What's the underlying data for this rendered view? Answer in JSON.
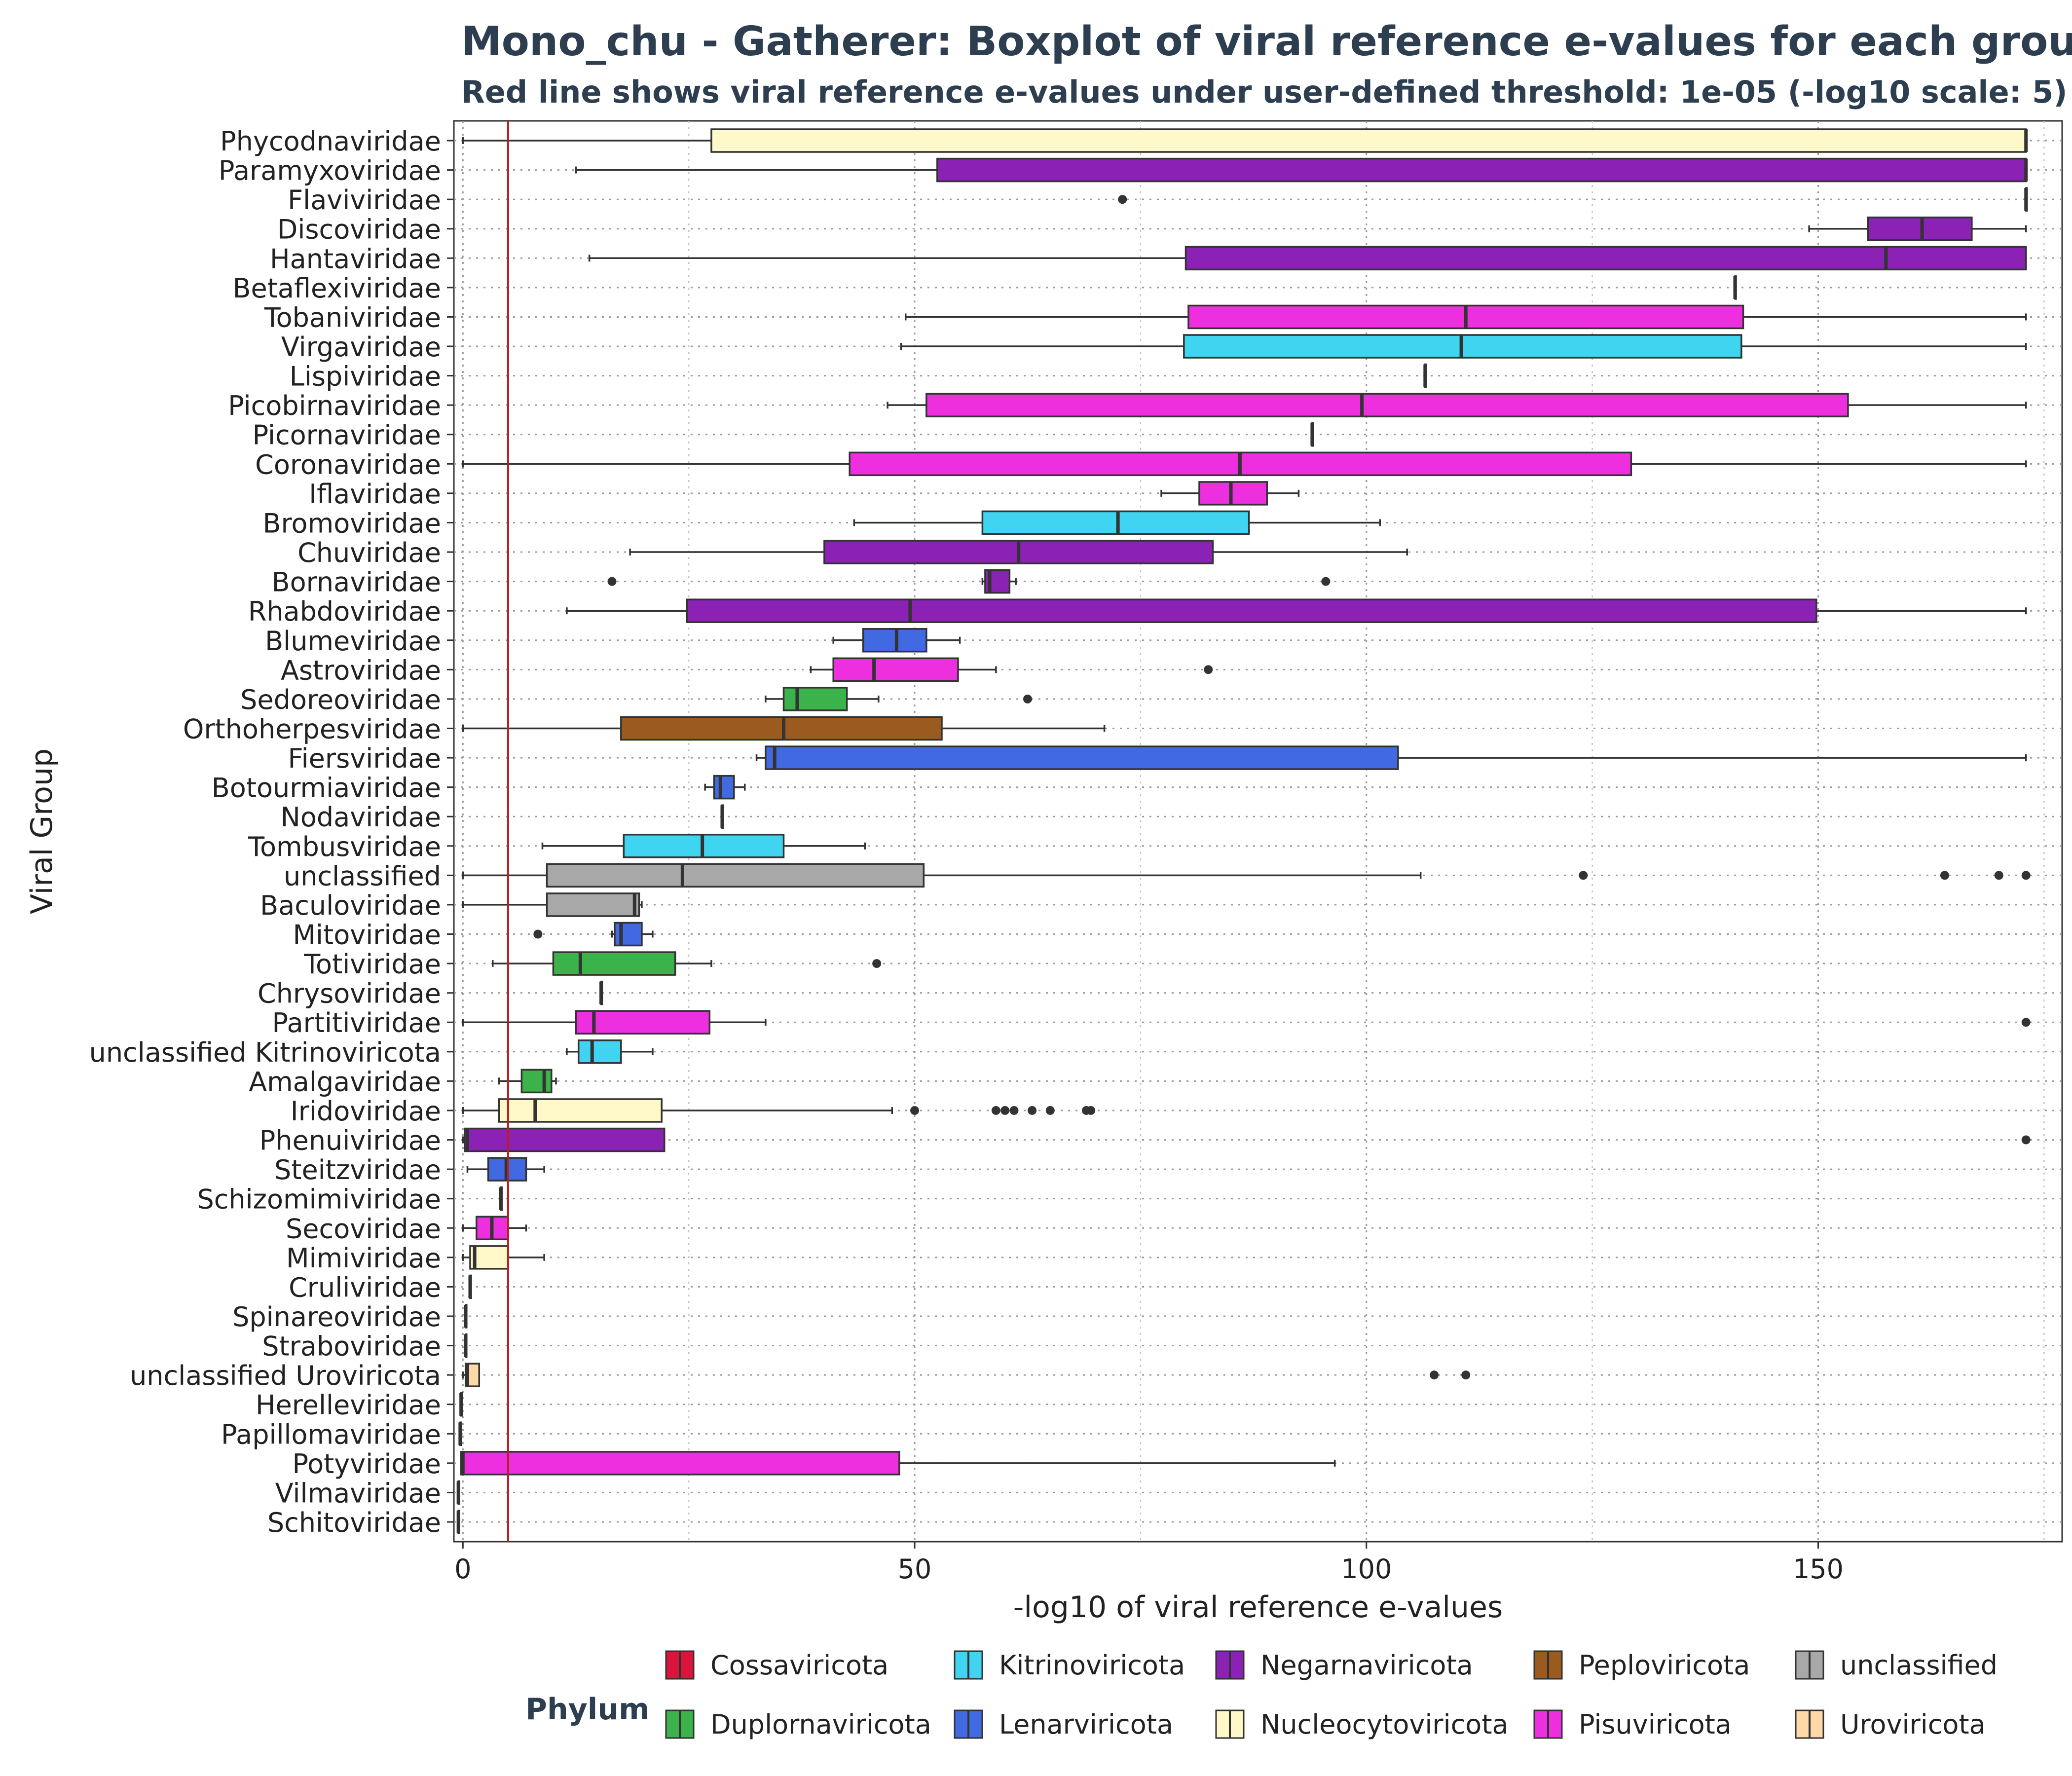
{
  "chart_data": {
    "type": "boxplot",
    "orientation": "horizontal",
    "title": "Mono_chu - Gatherer: Boxplot of viral reference e-values for each group",
    "subtitle": "Red line shows viral reference e-values under user-defined threshold: 1e-05 (-log10 scale: 5)",
    "xlabel": "-log10 of viral reference e-values",
    "ylabel": "Viral Group",
    "xlim": [
      -1,
      177
    ],
    "x_ticks": [
      0,
      50,
      100,
      150
    ],
    "threshold": 5,
    "threshold_color": "#b22222",
    "grid": "dotted",
    "legend": {
      "title": "Phylum",
      "position": "bottom",
      "entries": [
        {
          "name": "Cossaviricota",
          "color": "#dc143c"
        },
        {
          "name": "Duplornaviricota",
          "color": "#3cb34a"
        },
        {
          "name": "Kitrinoviricota",
          "color": "#3fd4f0"
        },
        {
          "name": "Lenarviricota",
          "color": "#4169e1"
        },
        {
          "name": "Negarnaviricota",
          "color": "#8b22b5"
        },
        {
          "name": "Nucleocytoviricota",
          "color": "#fff8c8"
        },
        {
          "name": "Peploviricota",
          "color": "#9c5b1e"
        },
        {
          "name": "Pisuviricota",
          "color": "#ee2fe0"
        },
        {
          "name": "unclassified",
          "color": "#a8a8a8"
        },
        {
          "name": "Uroviricota",
          "color": "#ffd8a8"
        }
      ]
    },
    "groups": [
      {
        "name": "Phycodnaviridae",
        "phylum": "Nucleocytoviricota",
        "min": 0,
        "q1": 27.5,
        "median": 173,
        "q3": 173,
        "max": 173,
        "outliers": []
      },
      {
        "name": "Paramyxoviridae",
        "phylum": "Negarnaviricota",
        "min": 12.5,
        "q1": 52.5,
        "median": 173,
        "q3": 173,
        "max": 173,
        "outliers": []
      },
      {
        "name": "Flaviviridae",
        "phylum": "Negarnaviricota",
        "min": 173,
        "q1": 173,
        "median": 173,
        "q3": 173,
        "max": 173,
        "outliers": [
          73
        ]
      },
      {
        "name": "Discoviridae",
        "phylum": "Negarnaviricota",
        "min": 149,
        "q1": 155.5,
        "median": 161.5,
        "q3": 167,
        "max": 173,
        "outliers": []
      },
      {
        "name": "Hantaviridae",
        "phylum": "Negarnaviricota",
        "min": 14,
        "q1": 80,
        "median": 157.5,
        "q3": 173,
        "max": 173,
        "outliers": []
      },
      {
        "name": "Betaflexiviridae",
        "phylum": "Kitrinoviricota",
        "min": 140.8,
        "q1": 140.8,
        "median": 140.8,
        "q3": 140.8,
        "max": 140.8,
        "outliers": []
      },
      {
        "name": "Tobaniviridae",
        "phylum": "Pisuviricota",
        "min": 49,
        "q1": 80.3,
        "median": 111,
        "q3": 141.7,
        "max": 173,
        "outliers": []
      },
      {
        "name": "Virgaviridae",
        "phylum": "Kitrinoviricota",
        "min": 48.5,
        "q1": 79.8,
        "median": 110.5,
        "q3": 141.5,
        "max": 173,
        "outliers": []
      },
      {
        "name": "Lispiviridae",
        "phylum": "Negarnaviricota",
        "min": 106.5,
        "q1": 106.5,
        "median": 106.5,
        "q3": 106.5,
        "max": 106.5,
        "outliers": []
      },
      {
        "name": "Picobirnaviridae",
        "phylum": "Pisuviricota",
        "min": 47,
        "q1": 51.3,
        "median": 99.5,
        "q3": 153.3,
        "max": 173,
        "outliers": []
      },
      {
        "name": "Picornaviridae",
        "phylum": "Pisuviricota",
        "min": 94,
        "q1": 94,
        "median": 94,
        "q3": 94,
        "max": 94,
        "outliers": []
      },
      {
        "name": "Coronaviridae",
        "phylum": "Pisuviricota",
        "min": 0,
        "q1": 42.8,
        "median": 86,
        "q3": 129.3,
        "max": 173,
        "outliers": []
      },
      {
        "name": "Iflaviridae",
        "phylum": "Pisuviricota",
        "min": 77.3,
        "q1": 81.5,
        "median": 85,
        "q3": 89,
        "max": 92.5,
        "outliers": []
      },
      {
        "name": "Bromoviridae",
        "phylum": "Kitrinoviricota",
        "min": 43.3,
        "q1": 57.5,
        "median": 72.5,
        "q3": 87,
        "max": 101.5,
        "outliers": []
      },
      {
        "name": "Chuviridae",
        "phylum": "Negarnaviricota",
        "min": 18.5,
        "q1": 40,
        "median": 61.5,
        "q3": 83,
        "max": 104.5,
        "outliers": []
      },
      {
        "name": "Bornaviridae",
        "phylum": "Negarnaviricota",
        "min": 57.5,
        "q1": 57.8,
        "median": 58.3,
        "q3": 60.5,
        "max": 61.2,
        "outliers": [
          16.5,
          95.5
        ]
      },
      {
        "name": "Rhabdoviridae",
        "phylum": "Negarnaviricota",
        "min": 11.5,
        "q1": 24.8,
        "median": 49.5,
        "q3": 149.8,
        "max": 173,
        "outliers": []
      },
      {
        "name": "Blumeviridae",
        "phylum": "Lenarviricota",
        "min": 41,
        "q1": 44.3,
        "median": 48,
        "q3": 51.3,
        "max": 55,
        "outliers": []
      },
      {
        "name": "Astroviridae",
        "phylum": "Pisuviricota",
        "min": 38.5,
        "q1": 41,
        "median": 45.5,
        "q3": 54.8,
        "max": 59,
        "outliers": [
          82.5
        ]
      },
      {
        "name": "Sedoreoviridae",
        "phylum": "Duplornaviricota",
        "min": 33.5,
        "q1": 35.5,
        "median": 37,
        "q3": 42.5,
        "max": 46,
        "outliers": [
          62.5
        ]
      },
      {
        "name": "Orthoherpesviridae",
        "phylum": "Peploviricota",
        "min": 0,
        "q1": 17.5,
        "median": 35.5,
        "q3": 53,
        "max": 71,
        "outliers": []
      },
      {
        "name": "Fiersviridae",
        "phylum": "Lenarviricota",
        "min": 32.5,
        "q1": 33.5,
        "median": 34.5,
        "q3": 103.5,
        "max": 173,
        "outliers": []
      },
      {
        "name": "Botourmiaviridae",
        "phylum": "Lenarviricota",
        "min": 26.8,
        "q1": 27.8,
        "median": 28.5,
        "q3": 30,
        "max": 31.2,
        "outliers": []
      },
      {
        "name": "Nodaviridae",
        "phylum": "Pisuviricota",
        "min": 28.7,
        "q1": 28.7,
        "median": 28.7,
        "q3": 28.7,
        "max": 28.7,
        "outliers": []
      },
      {
        "name": "Tombusviridae",
        "phylum": "Kitrinoviricota",
        "min": 8.8,
        "q1": 17.8,
        "median": 26.5,
        "q3": 35.5,
        "max": 44.5,
        "outliers": []
      },
      {
        "name": "unclassified",
        "phylum": "unclassified",
        "min": 0,
        "q1": 9.3,
        "median": 24.3,
        "q3": 51,
        "max": 106,
        "outliers": [
          124,
          164,
          170,
          173
        ]
      },
      {
        "name": "Baculoviridae",
        "phylum": "unclassified",
        "min": 0,
        "q1": 9.3,
        "median": 19,
        "q3": 19.5,
        "max": 19.8,
        "outliers": []
      },
      {
        "name": "Mitoviridae",
        "phylum": "Lenarviricota",
        "min": 16.5,
        "q1": 16.8,
        "median": 17.5,
        "q3": 19.8,
        "max": 21,
        "outliers": [
          8.3
        ]
      },
      {
        "name": "Totiviridae",
        "phylum": "Duplornaviricota",
        "min": 3.3,
        "q1": 10,
        "median": 13,
        "q3": 23.5,
        "max": 27.5,
        "outliers": [
          45.8
        ]
      },
      {
        "name": "Chrysoviridae",
        "phylum": "Duplornaviricota",
        "min": 15.3,
        "q1": 15.3,
        "median": 15.3,
        "q3": 15.3,
        "max": 15.3,
        "outliers": []
      },
      {
        "name": "Partitiviridae",
        "phylum": "Pisuviricota",
        "min": 0,
        "q1": 12.5,
        "median": 14.5,
        "q3": 27.3,
        "max": 33.5,
        "outliers": [
          173
        ]
      },
      {
        "name": "unclassified Kitrinoviricota",
        "phylum": "Kitrinoviricota",
        "min": 11.5,
        "q1": 12.8,
        "median": 14.3,
        "q3": 17.5,
        "max": 21,
        "outliers": []
      },
      {
        "name": "Amalgaviridae",
        "phylum": "Duplornaviricota",
        "min": 4,
        "q1": 6.5,
        "median": 9,
        "q3": 9.8,
        "max": 10.3,
        "outliers": []
      },
      {
        "name": "Iridoviridae",
        "phylum": "Nucleocytoviricota",
        "min": 0,
        "q1": 4,
        "median": 8,
        "q3": 22,
        "max": 47.5,
        "outliers": [
          50,
          59,
          60,
          61,
          63,
          65,
          69,
          69.5
        ]
      },
      {
        "name": "Phenuiviridae",
        "phylum": "Negarnaviricota",
        "min": 0,
        "q1": 0.2,
        "median": 0.5,
        "q3": 22.3,
        "max": 22.3,
        "outliers": [
          173
        ]
      },
      {
        "name": "Steitzviridae",
        "phylum": "Lenarviricota",
        "min": 0.5,
        "q1": 2.8,
        "median": 4.8,
        "q3": 7,
        "max": 9,
        "outliers": []
      },
      {
        "name": "Schizomimiviridae",
        "phylum": "Nucleocytoviricota",
        "min": 4.2,
        "q1": 4.2,
        "median": 4.2,
        "q3": 4.2,
        "max": 4.2,
        "outliers": []
      },
      {
        "name": "Secoviridae",
        "phylum": "Pisuviricota",
        "min": 0,
        "q1": 1.5,
        "median": 3.2,
        "q3": 5,
        "max": 7,
        "outliers": []
      },
      {
        "name": "Mimiviridae",
        "phylum": "Nucleocytoviricota",
        "min": 0,
        "q1": 0.8,
        "median": 1.3,
        "q3": 5,
        "max": 9,
        "outliers": []
      },
      {
        "name": "Cruliviridae",
        "phylum": "Negarnaviricota",
        "min": 0.8,
        "q1": 0.8,
        "median": 0.8,
        "q3": 0.8,
        "max": 0.8,
        "outliers": []
      },
      {
        "name": "Spinareoviridae",
        "phylum": "Duplornaviricota",
        "min": 0.3,
        "q1": 0.3,
        "median": 0.3,
        "q3": 0.3,
        "max": 0.3,
        "outliers": []
      },
      {
        "name": "Straboviridae",
        "phylum": "Uroviricota",
        "min": 0.3,
        "q1": 0.3,
        "median": 0.3,
        "q3": 0.3,
        "max": 0.3,
        "outliers": []
      },
      {
        "name": "unclassified Uroviricota",
        "phylum": "Uroviricota",
        "min": 0,
        "q1": 0.3,
        "median": 0.5,
        "q3": 1.8,
        "max": 1.8,
        "outliers": [
          107.5,
          111
        ]
      },
      {
        "name": "Herelleviridae",
        "phylum": "Uroviricota",
        "min": -0.2,
        "q1": -0.2,
        "median": -0.2,
        "q3": -0.2,
        "max": -0.2,
        "outliers": []
      },
      {
        "name": "Papillomaviridae",
        "phylum": "Cossaviricota",
        "min": -0.3,
        "q1": -0.3,
        "median": -0.3,
        "q3": -0.3,
        "max": -0.3,
        "outliers": []
      },
      {
        "name": "Potyviridae",
        "phylum": "Pisuviricota",
        "min": -0.2,
        "q1": -0.2,
        "median": 0,
        "q3": 48.3,
        "max": 96.5,
        "outliers": []
      },
      {
        "name": "Vilmaviridae",
        "phylum": "Cossaviricota",
        "min": -0.5,
        "q1": -0.5,
        "median": -0.5,
        "q3": -0.5,
        "max": -0.5,
        "outliers": []
      },
      {
        "name": "Schitoviridae",
        "phylum": "Uroviricota",
        "min": -0.5,
        "q1": -0.5,
        "median": -0.5,
        "q3": -0.5,
        "max": -0.5,
        "outliers": []
      }
    ]
  }
}
